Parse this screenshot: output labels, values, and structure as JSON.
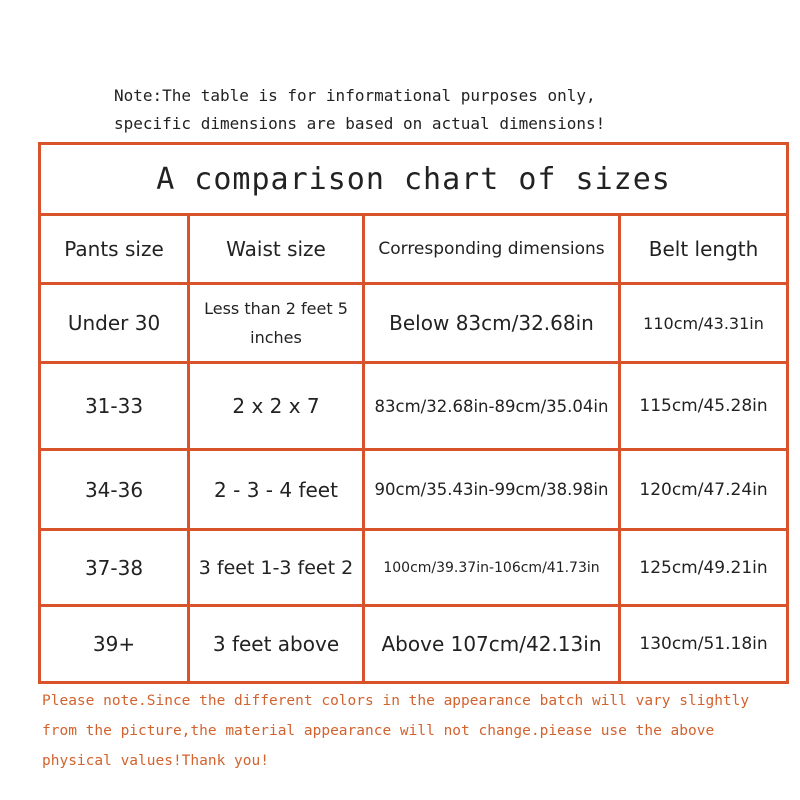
{
  "note": [
    "Note:The table is for informational purposes only,",
    "specific dimensions are based on actual dimensions!"
  ],
  "title": "A comparison chart of sizes",
  "headers": [
    "Pants size",
    "Waist size",
    "Corresponding dimensions",
    "Belt length"
  ],
  "rows": [
    [
      "Under 30",
      "Less than 2 feet 5 inches",
      "Below 83cm/32.68in",
      "110cm/43.31in"
    ],
    [
      "31-33",
      "2 x 2 x 7",
      "83cm/32.68in-89cm/35.04in",
      "115cm/45.28in"
    ],
    [
      "34-36",
      "2 - 3 - 4 feet",
      "90cm/35.43in-99cm/38.98in",
      "120cm/47.24in"
    ],
    [
      "37-38",
      "3 feet 1-3 feet 2",
      "100cm/39.37in-106cm/41.73in",
      "125cm/49.21in"
    ],
    [
      "39+",
      "3 feet above",
      "Above 107cm/42.13in",
      "130cm/51.18in"
    ]
  ],
  "footer": [
    "Please note.Since the different colors in the appearance batch will vary slightly",
    "from the picture,the material appearance will not change.piease use the above",
    "physical values!Thank you!"
  ],
  "colors": {
    "border": "#d9532a",
    "footer_text": "#d2622e"
  }
}
